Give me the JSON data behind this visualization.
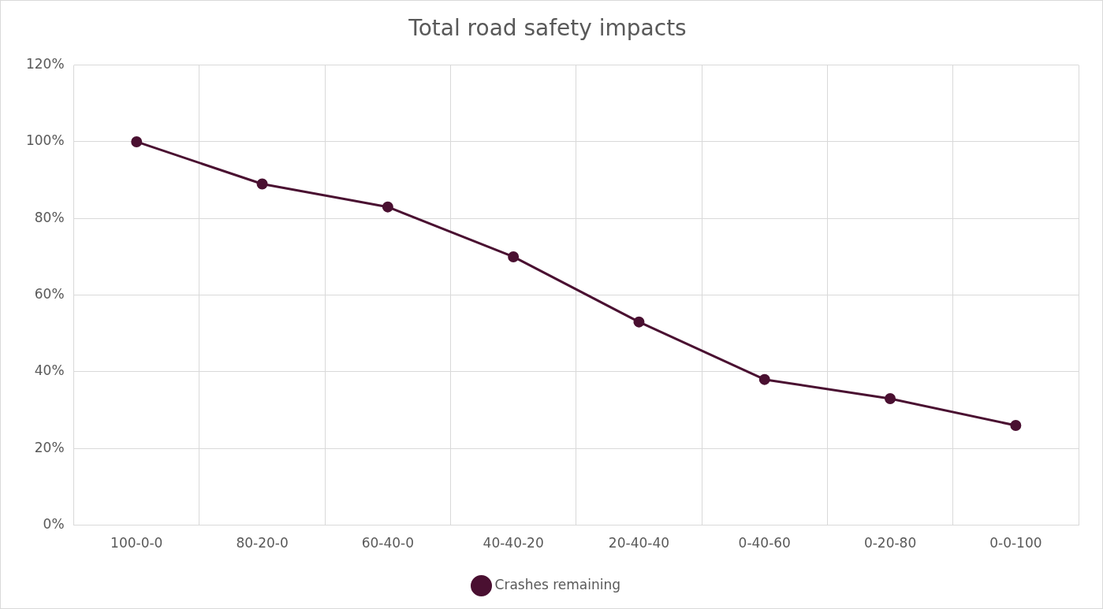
{
  "chart_data": {
    "type": "line",
    "title": "Total road safety impacts",
    "categories": [
      "100-0-0",
      "80-20-0",
      "60-40-0",
      "40-40-20",
      "20-40-40",
      "0-40-60",
      "0-20-80",
      "0-0-100"
    ],
    "series": [
      {
        "name": "Crashes remaining",
        "color": "#4a1031",
        "values": [
          100,
          89,
          83,
          70,
          53,
          38,
          33,
          26
        ]
      }
    ],
    "ylim": [
      0,
      120
    ],
    "yticks": [
      {
        "value": 0,
        "label": "0%"
      },
      {
        "value": 20,
        "label": "20%"
      },
      {
        "value": 40,
        "label": "40%"
      },
      {
        "value": 60,
        "label": "60%"
      },
      {
        "value": 80,
        "label": "80%"
      },
      {
        "value": 100,
        "label": "100%"
      },
      {
        "value": 120,
        "label": "120%"
      }
    ],
    "grid": true,
    "legend": "bottom",
    "marker": "circle",
    "line_style": "solid"
  }
}
